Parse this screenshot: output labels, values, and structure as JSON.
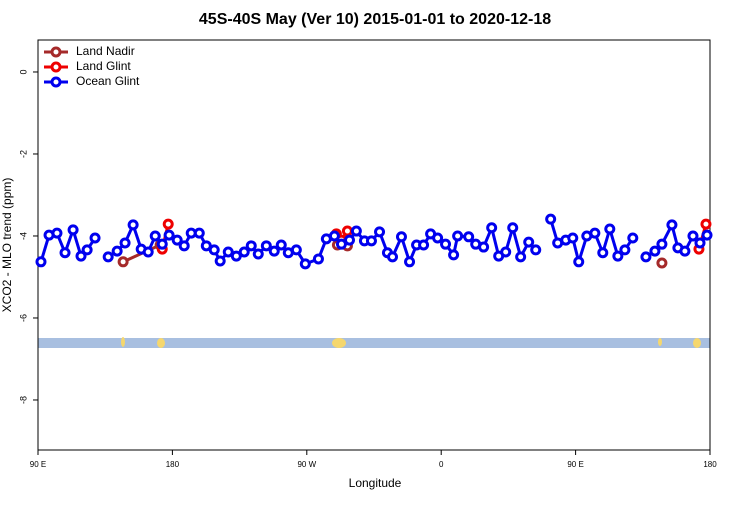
{
  "chart_data": {
    "type": "line",
    "title": "45S-40S May (Ver 10)   2015-01-01 to 2020-12-18",
    "x_label": "Longitude",
    "y_label": "XCO2 - MLO trend (ppm)",
    "xlim": [
      90,
      540
    ],
    "ylim": [
      -9.22,
      0.78
    ],
    "xticks": [
      {
        "value": 90,
        "label": "90 E"
      },
      180,
      {
        "value": 270,
        "label": "90 W"
      },
      {
        "value": 360,
        "label": "0"
      },
      {
        "value": 450,
        "label": "90 E"
      },
      {
        "value": 540,
        "label": "180"
      }
    ],
    "yticks": [
      0,
      -2,
      -4,
      -6,
      -8
    ],
    "legend": "top-left",
    "series": [
      {
        "name": "Land Nadir",
        "color": "#a52a2a",
        "x": [
          147.0,
          171.8,
          null,
          290.5,
          297.2,
          null,
          507.8
        ],
        "values": [
          -4.63,
          -4.22,
          null,
          -4.22,
          -4.24,
          null,
          -4.66
        ]
      },
      {
        "name": "Land Glint",
        "color": "#ee0000",
        "x": [
          173.2,
          177.2,
          null,
          289.8,
          293.2,
          297.2,
          null,
          532.6,
          537.3
        ],
        "values": [
          -4.32,
          -3.71,
          null,
          -3.95,
          -4.1,
          -3.88,
          null,
          -4.32,
          -3.71
        ]
      },
      {
        "name": "Ocean Glint",
        "color": "#0000ee",
        "x": [
          92.0,
          97.4,
          102.7,
          108.1,
          113.5,
          118.8,
          122.9,
          128.2,
          null,
          137.0,
          143.0,
          148.3,
          153.7,
          159.1,
          163.8,
          168.5,
          173.2,
          177.8,
          183.2,
          187.9,
          192.6,
          198.0,
          202.7,
          208.0,
          212.0,
          217.4,
          222.8,
          228.1,
          232.8,
          237.5,
          242.9,
          248.2,
          252.9,
          257.6,
          263.0,
          269.0,
          277.8,
          283.1,
          288.5,
          293.2,
          298.6,
          303.2,
          308.6,
          313.3,
          318.7,
          324.0,
          327.4,
          333.4,
          338.8,
          343.5,
          348.2,
          352.9,
          357.6,
          362.9,
          368.3,
          371.0,
          378.4,
          383.1,
          388.4,
          393.8,
          398.5,
          403.2,
          407.9,
          413.2,
          418.6,
          423.3,
          null,
          433.3,
          438.0,
          443.4,
          448.1,
          452.1,
          457.5,
          462.9,
          468.2,
          472.9,
          478.3,
          483.0,
          488.3,
          null,
          497.1,
          503.1,
          507.8,
          514.5,
          518.5,
          523.2,
          528.6,
          533.3,
          538.0
        ],
        "values": [
          -4.63,
          -3.98,
          -3.93,
          -4.41,
          -3.85,
          -4.49,
          -4.34,
          -4.05,
          null,
          -4.51,
          -4.37,
          -4.17,
          -3.73,
          -4.32,
          -4.39,
          -4.0,
          -4.2,
          -3.98,
          -4.1,
          -4.24,
          -3.93,
          -3.93,
          -4.24,
          -4.34,
          -4.61,
          -4.39,
          -4.49,
          -4.39,
          -4.24,
          -4.44,
          -4.24,
          -4.37,
          -4.22,
          -4.41,
          -4.34,
          -4.68,
          -4.56,
          -4.07,
          -4.0,
          -4.2,
          -4.1,
          -3.88,
          -4.12,
          -4.12,
          -3.9,
          -4.41,
          -4.51,
          -4.02,
          -4.63,
          -4.22,
          -4.22,
          -3.95,
          -4.05,
          -4.2,
          -4.46,
          -4.0,
          -4.02,
          -4.2,
          -4.27,
          -3.8,
          -4.49,
          -4.39,
          -3.8,
          -4.51,
          -4.15,
          -4.34,
          null,
          -3.59,
          -4.17,
          -4.1,
          -4.05,
          -4.63,
          -4.0,
          -3.93,
          -4.41,
          -3.83,
          -4.49,
          -4.34,
          -4.05,
          null,
          -4.51,
          -4.37,
          -4.2,
          -3.73,
          -4.29,
          -4.37,
          -4.0,
          -4.17,
          -3.98
        ]
      }
    ]
  }
}
